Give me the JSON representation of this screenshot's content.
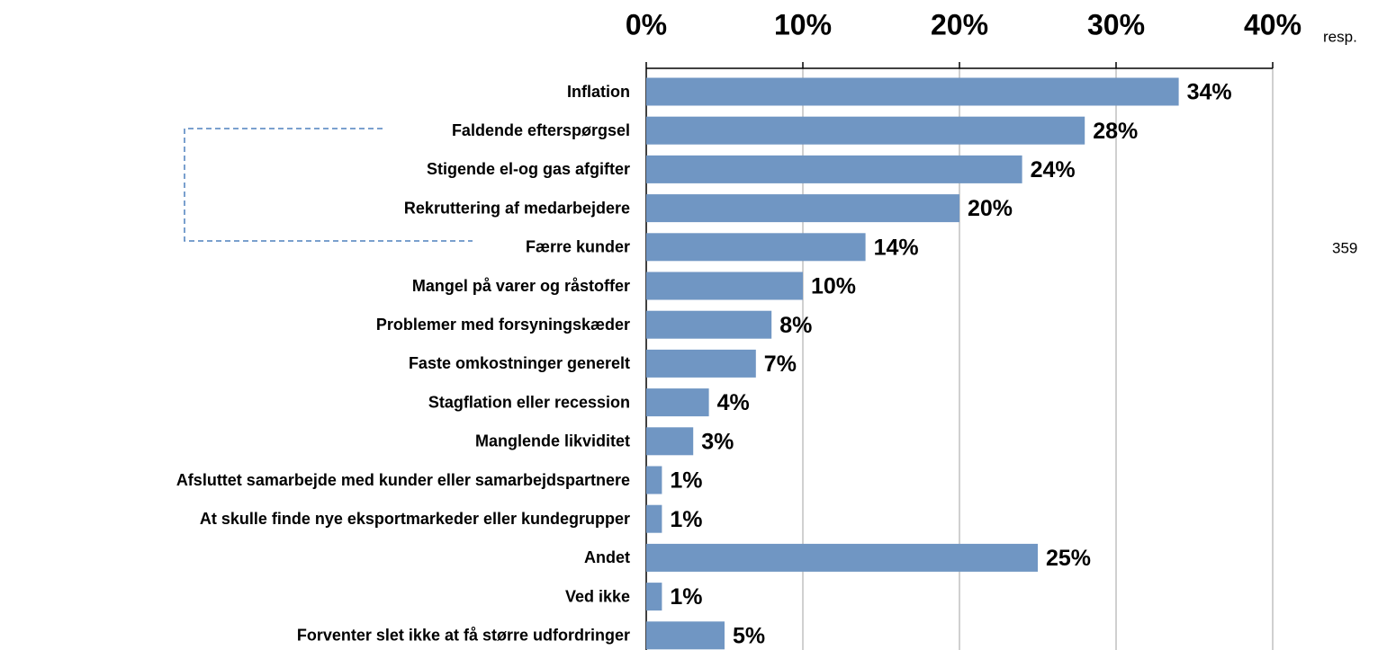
{
  "chart_data": {
    "type": "hbar",
    "categories": [
      "Inflation",
      "Faldende efterspørgsel",
      "Stigende el-og gas afgifter",
      "Rekruttering af medarbejdere",
      "Færre kunder",
      "Mangel på varer og råstoffer",
      "Problemer med forsyningskæder",
      "Faste omkostninger generelt",
      "Stagflation eller recession",
      "Manglende likviditet",
      "Afsluttet samarbejde med kunder eller samarbejdspartnere",
      "At skulle finde nye eksportmarkeder eller kundegrupper",
      "Andet",
      "Ved ikke",
      "Forventer slet ikke at få større udfordringer"
    ],
    "values": [
      34,
      28,
      24,
      20,
      14,
      10,
      8,
      7,
      4,
      3,
      1,
      1,
      25,
      1,
      5
    ],
    "value_labels": [
      "34%",
      "28%",
      "24%",
      "20%",
      "14%",
      "10%",
      "8%",
      "7%",
      "4%",
      "3%",
      "1%",
      "1%",
      "25%",
      "1%",
      "5%"
    ],
    "color": "#7096c3",
    "xlim": [
      0,
      40
    ],
    "xticks": [
      {
        "value": 0,
        "label": "0%"
      },
      {
        "value": 10,
        "label": "10%"
      },
      {
        "value": 20,
        "label": "20%"
      },
      {
        "value": 30,
        "label": "30%"
      },
      {
        "value": 40,
        "label": "40%"
      }
    ],
    "grid": true,
    "annotations": [
      "resp.",
      "359"
    ]
  }
}
